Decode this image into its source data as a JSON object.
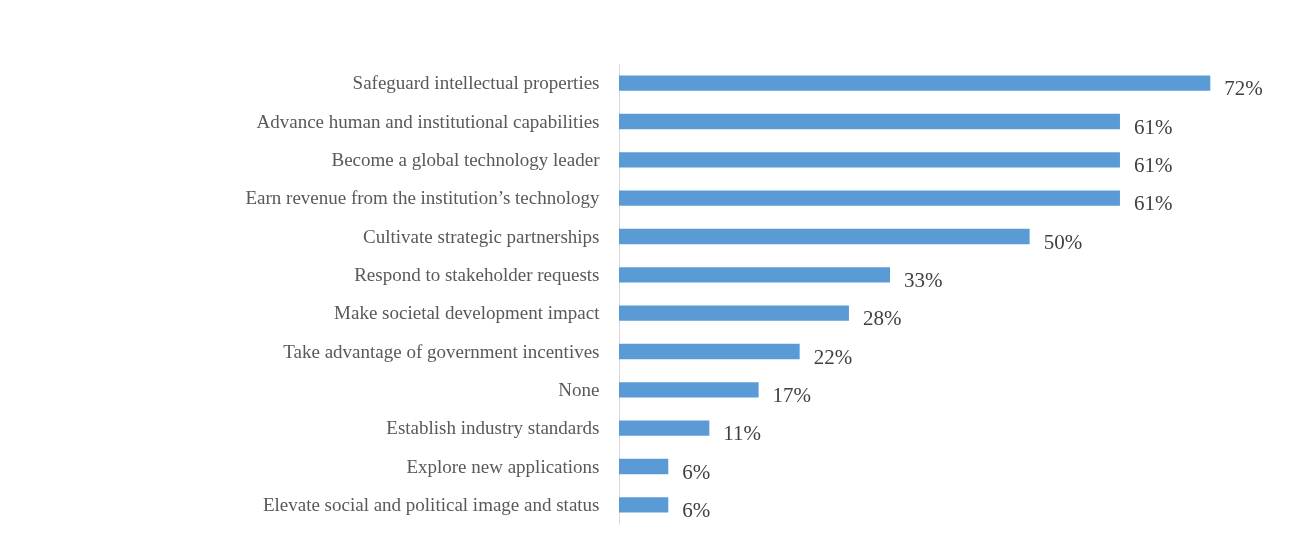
{
  "chart_data": {
    "type": "bar",
    "orientation": "horizontal",
    "categories": [
      "Safeguard intellectual properties",
      "Advance human and institutional capabilities",
      "Become a global technology leader",
      "Earn revenue from the institution’s technology",
      "Cultivate strategic partnerships",
      "Respond to stakeholder requests",
      "Make societal development impact",
      "Take advantage of government incentives",
      "None",
      "Establish industry standards",
      "Explore new applications",
      "Elevate social and political image and status"
    ],
    "values": [
      72,
      61,
      61,
      61,
      50,
      33,
      28,
      22,
      17,
      11,
      6,
      6
    ],
    "value_labels": [
      "72%",
      "61%",
      "61%",
      "61%",
      "50%",
      "33%",
      "28%",
      "22%",
      "17%",
      "11%",
      "6%",
      "6%"
    ],
    "color": "#5b9bd5"
  }
}
